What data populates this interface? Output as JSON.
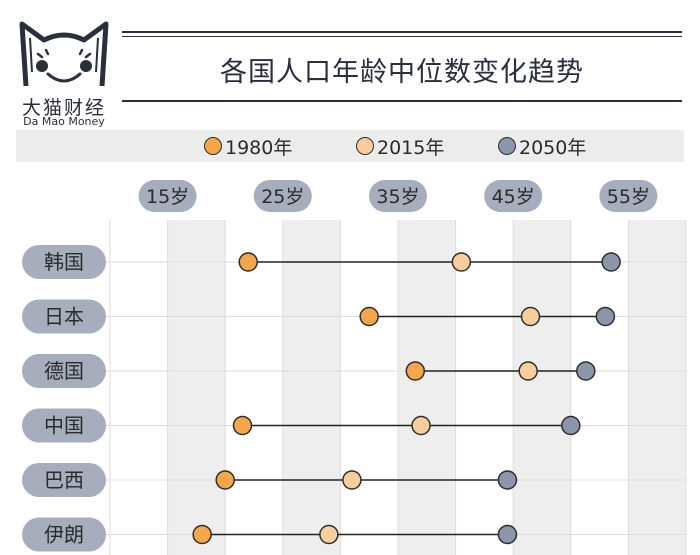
{
  "brand": {
    "name_cn": "大猫财经",
    "name_en": "Da Mao Money"
  },
  "title": "各国人口年龄中位数变化趋势",
  "colors": {
    "1980": "#f5a54a",
    "2015": "#f8cf9c",
    "2050": "#8c96aa",
    "label_pill": "#a6adbd",
    "band": "#eeeeee",
    "line": "#222222"
  },
  "chart_data": {
    "type": "dumbbell",
    "title": "各国人口年龄中位数变化趋势",
    "x_ticks": [
      "15岁",
      "25岁",
      "35岁",
      "45岁",
      "55岁"
    ],
    "x_tick_values": [
      15,
      25,
      35,
      45,
      55
    ],
    "xlim": [
      10,
      60
    ],
    "legend": [
      "1980年",
      "2015年",
      "2050年"
    ],
    "legend_placement": "top",
    "categories": [
      "韩国",
      "日本",
      "德国",
      "中国",
      "巴西",
      "伊朗"
    ],
    "series": [
      {
        "name": "1980年",
        "values": [
          22,
          32.5,
          36.5,
          21.5,
          20,
          18
        ]
      },
      {
        "name": "2015年",
        "values": [
          40.5,
          46.5,
          46.3,
          37,
          31,
          29
        ]
      },
      {
        "name": "2050年",
        "values": [
          53.5,
          53,
          51.3,
          50,
          44.5,
          44.5
        ]
      }
    ]
  }
}
